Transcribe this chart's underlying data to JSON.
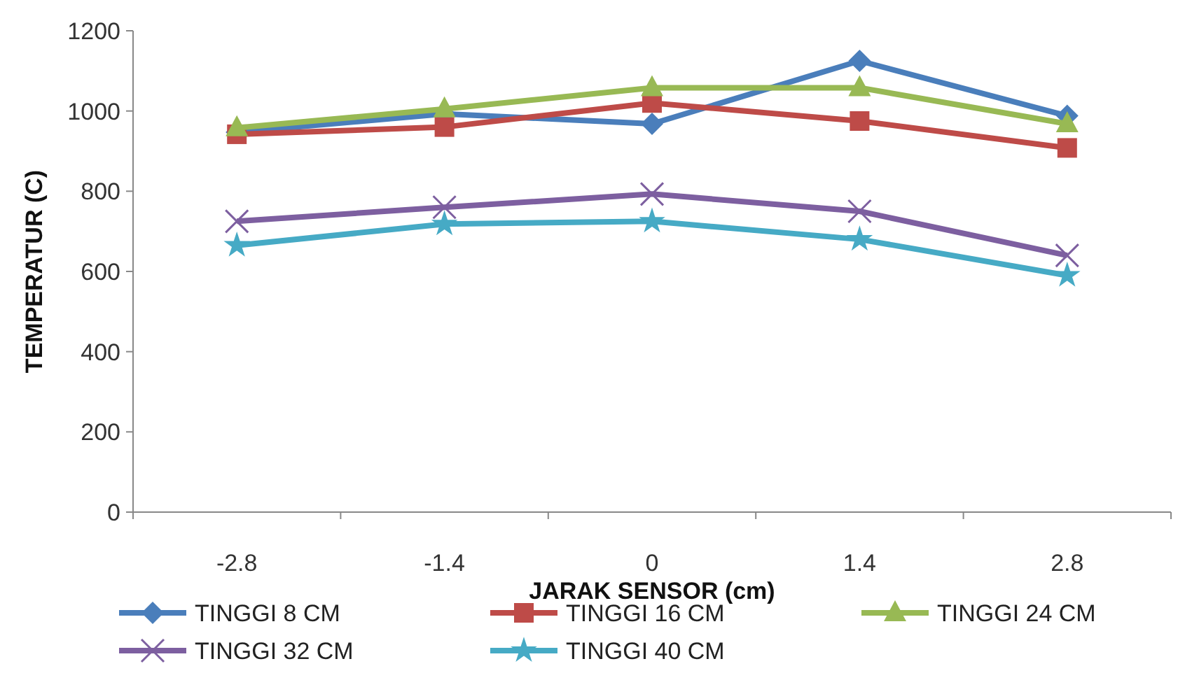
{
  "chart_data": {
    "type": "line",
    "xlabel": "JARAK SENSOR (cm)",
    "ylabel": "TEMPERATUR (C)",
    "categories": [
      "-2.8",
      "-1.4",
      "0",
      "1.4",
      "2.8"
    ],
    "ylim": [
      0,
      1200
    ],
    "yticks": [
      0,
      200,
      400,
      600,
      800,
      1000,
      1200
    ],
    "grid": false,
    "legend": "bottom",
    "series": [
      {
        "name": "TINGGI 8 CM",
        "color": "#4a7ebb",
        "marker": "diamond",
        "values": [
          947,
          993,
          968,
          1125,
          988
        ]
      },
      {
        "name": "TINGGI 16 CM",
        "color": "#be4b48",
        "marker": "square",
        "values": [
          942,
          960,
          1020,
          975,
          908
        ]
      },
      {
        "name": "TINGGI 24 CM",
        "color": "#98b954",
        "marker": "triangle",
        "values": [
          958,
          1005,
          1058,
          1058,
          968
        ]
      },
      {
        "name": "TINGGI 32 CM",
        "color": "#7d5fa0",
        "marker": "cross",
        "values": [
          725,
          760,
          793,
          750,
          640
        ]
      },
      {
        "name": "TINGGI 40 CM",
        "color": "#46aac5",
        "marker": "star",
        "values": [
          665,
          718,
          725,
          680,
          590
        ]
      }
    ]
  }
}
